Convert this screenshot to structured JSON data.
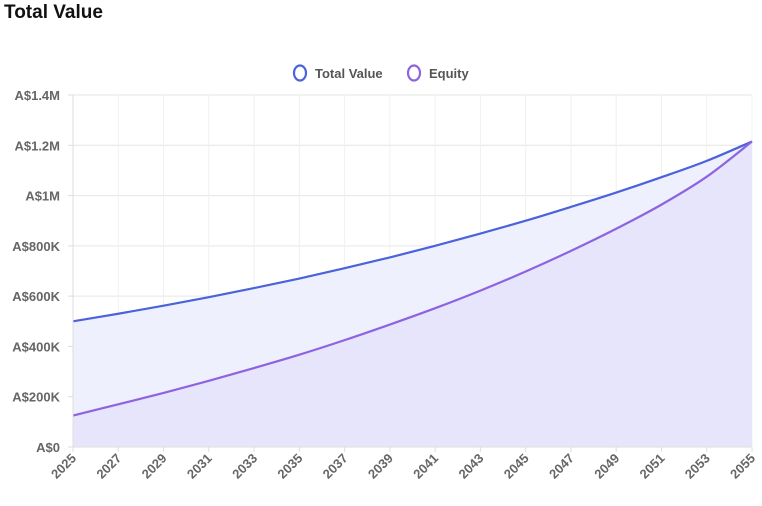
{
  "title": "Total Value",
  "chart_data": {
    "type": "area",
    "title": "Total Value",
    "xlabel": "",
    "ylabel": "",
    "x_tick_labels": [
      "2025",
      "2027",
      "2029",
      "2031",
      "2033",
      "2035",
      "2037",
      "2039",
      "2041",
      "2043",
      "2045",
      "2047",
      "2049",
      "2051",
      "2053",
      "2055"
    ],
    "y_tick_labels": [
      "A$0",
      "A$200K",
      "A$400K",
      "A$600K",
      "A$800K",
      "A$1M",
      "A$1.2M",
      "A$1.4M"
    ],
    "ylim": [
      0,
      1400000
    ],
    "xlim": [
      2025,
      2055
    ],
    "x": [
      2025,
      2027,
      2029,
      2031,
      2033,
      2035,
      2037,
      2039,
      2041,
      2043,
      2045,
      2047,
      2049,
      2051,
      2053,
      2055
    ],
    "series": [
      {
        "name": "Total Value",
        "color": "#4a63db",
        "fill": "#eef0fd",
        "values": [
          500000,
          530000,
          562000,
          596000,
          632000,
          670000,
          711000,
          754000,
          800000,
          849000,
          900000,
          955000,
          1012000,
          1073000,
          1138000,
          1215000
        ]
      },
      {
        "name": "Equity",
        "color": "#8e63e0",
        "fill": "#e4e3fb",
        "values": [
          125000,
          170000,
          215000,
          263000,
          314000,
          367000,
          425000,
          487000,
          552000,
          622000,
          698000,
          780000,
          868000,
          964000,
          1075000,
          1215000
        ]
      }
    ],
    "legend": "top-center",
    "grid": true
  }
}
